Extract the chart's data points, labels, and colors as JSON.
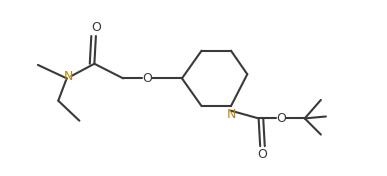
{
  "bg_color": "#ffffff",
  "line_color": "#3a3a3a",
  "line_width": 1.5,
  "figsize": [
    3.87,
    1.76
  ],
  "dpi": 100,
  "xlim": [
    0,
    10
  ],
  "ylim": [
    0,
    4.5
  ],
  "N_label_color": "#b8860b",
  "O_label_color": "#3a3a3a"
}
